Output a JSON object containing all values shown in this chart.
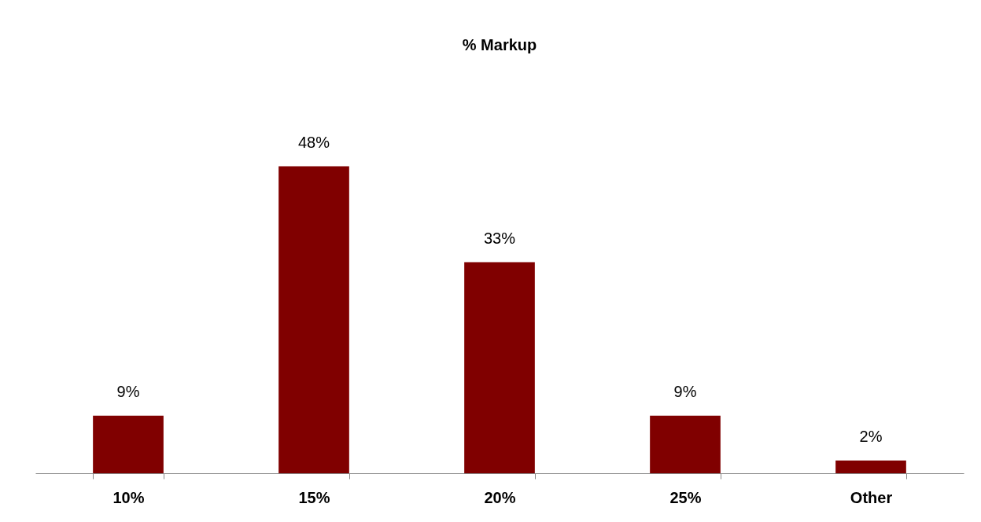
{
  "chart_data": {
    "type": "bar",
    "title": "% Markup",
    "categories": [
      "10%",
      "15%",
      "20%",
      "25%",
      "Other"
    ],
    "values": [
      9,
      48,
      33,
      9,
      2
    ],
    "value_labels": [
      "9%",
      "48%",
      "33%",
      "9%",
      "2%"
    ],
    "color": "#800000"
  }
}
